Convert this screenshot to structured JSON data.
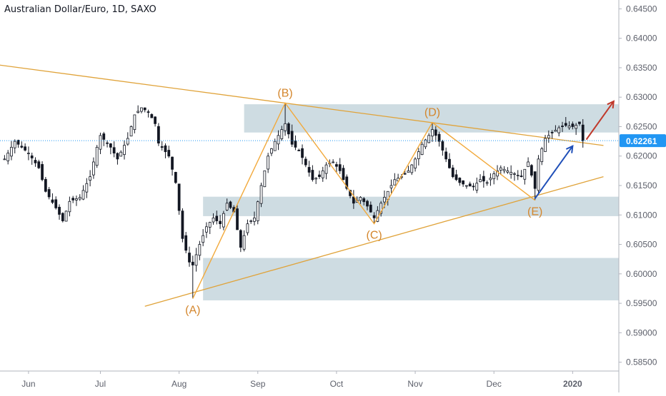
{
  "header": {
    "title": "Australian Dollar/Euro, 1D, SAXO"
  },
  "price_label": "0.62261",
  "colors": {
    "up": "#ffffff",
    "down": "#131722",
    "wick": "#131722",
    "trend": "#e0a33a",
    "wave": "#f2a93b",
    "label": "#d4862c",
    "zone": "#c9d8df",
    "price_line": "#2196f3",
    "price_tag": "#2196f3",
    "blue_arrow": "#1f4fb8",
    "red_arrow": "#c0392b",
    "axis_text": "#5d606b"
  },
  "chart_data": {
    "type": "candlestick",
    "title": "Australian Dollar/Euro, 1D, SAXO",
    "xlabel": "",
    "ylabel": "",
    "ylim": [
      0.5835,
      0.6465
    ],
    "y_ticks": [
      "0.64500",
      "0.64000",
      "0.63500",
      "0.63000",
      "0.62500",
      "0.62000",
      "0.61500",
      "0.61000",
      "0.60500",
      "0.60000",
      "0.59500",
      "0.59000",
      "0.58500"
    ],
    "x_ticks": [
      "Jun",
      "Jul",
      "Aug",
      "Sep",
      "Oct",
      "Nov",
      "Dec",
      "2020"
    ],
    "x_tick_index": [
      7,
      28,
      51,
      74,
      97,
      120,
      143,
      166
    ],
    "last_price": 0.62261,
    "wave_points": [
      {
        "label": "(A)",
        "index": 55,
        "price": 0.5958
      },
      {
        "label": "(B)",
        "index": 82,
        "price": 0.629
      },
      {
        "label": "(C)",
        "index": 108,
        "price": 0.6085
      },
      {
        "label": "(D)",
        "index": 125,
        "price": 0.6257
      },
      {
        "label": "(E)",
        "index": 155,
        "price": 0.6125
      }
    ],
    "trendlines": [
      {
        "from": {
          "index": -2,
          "price": 0.6355
        },
        "to": {
          "index": 175,
          "price": 0.6218
        }
      },
      {
        "from": {
          "index": 41,
          "price": 0.5945
        },
        "to": {
          "index": 175,
          "price": 0.6165
        }
      }
    ],
    "zones": [
      {
        "from_index": 70,
        "price_high": 0.6288,
        "price_low": 0.624
      },
      {
        "from_index": 58,
        "price_high": 0.6131,
        "price_low": 0.6098
      },
      {
        "from_index": 58,
        "price_high": 0.6027,
        "price_low": 0.5955
      }
    ],
    "arrows": [
      {
        "color": "blue",
        "from": {
          "index": 155,
          "price": 0.6128
        },
        "to": {
          "index": 166,
          "price": 0.6217
        }
      },
      {
        "color": "red",
        "from": {
          "index": 170,
          "price": 0.6228
        },
        "to": {
          "index": 178,
          "price": 0.6293
        }
      }
    ],
    "close_path": [
      [
        0,
        0.6195
      ],
      [
        3,
        0.6225
      ],
      [
        7,
        0.6205
      ],
      [
        10,
        0.618
      ],
      [
        12,
        0.614
      ],
      [
        15,
        0.6112
      ],
      [
        17,
        0.609
      ],
      [
        19,
        0.6123
      ],
      [
        22,
        0.613
      ],
      [
        25,
        0.6165
      ],
      [
        27,
        0.6215
      ],
      [
        28,
        0.6235
      ],
      [
        31,
        0.6215
      ],
      [
        33,
        0.6195
      ],
      [
        36,
        0.623
      ],
      [
        38,
        0.627
      ],
      [
        40,
        0.6282
      ],
      [
        42,
        0.6275
      ],
      [
        44,
        0.6255
      ],
      [
        45,
        0.6222
      ],
      [
        48,
        0.62
      ],
      [
        50,
        0.6155
      ],
      [
        52,
        0.606
      ],
      [
        54,
        0.602
      ],
      [
        55,
        0.6015
      ],
      [
        57,
        0.605
      ],
      [
        59,
        0.608
      ],
      [
        61,
        0.6095
      ],
      [
        63,
        0.6085
      ],
      [
        65,
        0.612
      ],
      [
        67,
        0.6105
      ],
      [
        69,
        0.6045
      ],
      [
        71,
        0.6085
      ],
      [
        73,
        0.6095
      ],
      [
        75,
        0.615
      ],
      [
        77,
        0.62
      ],
      [
        79,
        0.6225
      ],
      [
        81,
        0.6245
      ],
      [
        82,
        0.6255
      ],
      [
        84,
        0.622
      ],
      [
        86,
        0.621
      ],
      [
        88,
        0.6185
      ],
      [
        90,
        0.616
      ],
      [
        92,
        0.6165
      ],
      [
        94,
        0.6185
      ],
      [
        96,
        0.619
      ],
      [
        98,
        0.6175
      ],
      [
        100,
        0.6145
      ],
      [
        102,
        0.612
      ],
      [
        104,
        0.613
      ],
      [
        106,
        0.6115
      ],
      [
        108,
        0.6095
      ],
      [
        110,
        0.612
      ],
      [
        112,
        0.614
      ],
      [
        114,
        0.616
      ],
      [
        116,
        0.6165
      ],
      [
        118,
        0.6175
      ],
      [
        120,
        0.6195
      ],
      [
        122,
        0.622
      ],
      [
        124,
        0.6235
      ],
      [
        125,
        0.6245
      ],
      [
        127,
        0.6225
      ],
      [
        129,
        0.6195
      ],
      [
        131,
        0.6165
      ],
      [
        133,
        0.6155
      ],
      [
        135,
        0.615
      ],
      [
        137,
        0.6148
      ],
      [
        139,
        0.616
      ],
      [
        141,
        0.6155
      ],
      [
        143,
        0.617
      ],
      [
        145,
        0.618
      ],
      [
        147,
        0.6175
      ],
      [
        149,
        0.617
      ],
      [
        151,
        0.6165
      ],
      [
        153,
        0.619
      ],
      [
        155,
        0.6145
      ],
      [
        156,
        0.6195
      ],
      [
        158,
        0.623
      ],
      [
        160,
        0.624
      ],
      [
        162,
        0.6248
      ],
      [
        164,
        0.6252
      ],
      [
        166,
        0.625
      ],
      [
        168,
        0.6255
      ],
      [
        169,
        0.6226
      ]
    ],
    "n_candles": 170
  }
}
